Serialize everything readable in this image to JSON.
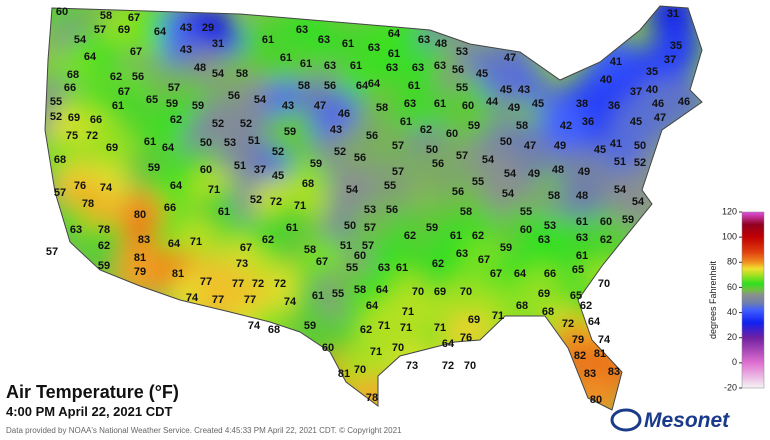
{
  "title": "Air Temperature (°F)",
  "subtitle": "4:00 PM April 22, 2021 CDT",
  "footer": "Data provided by NOAA's National Weather Service. Created 4:45:33 PM April 22, 2021 CDT. © Copyright 2021",
  "logo": "Mesonet",
  "stations": [
    60,
    58,
    67,
    54,
    57,
    69,
    64,
    64,
    43,
    29,
    43,
    31,
    67,
    48,
    68,
    62,
    56,
    54,
    58,
    66,
    67,
    65,
    59,
    57,
    55,
    61,
    59,
    56,
    54,
    52,
    69,
    66,
    62,
    52,
    52,
    75,
    72,
    61,
    64,
    50,
    53,
    51,
    69,
    68,
    52,
    59,
    37,
    60,
    51,
    45,
    59,
    57,
    76,
    74,
    64,
    71,
    68,
    78,
    66,
    61,
    52,
    72,
    71,
    80,
    63,
    78,
    83,
    64,
    71,
    67,
    62,
    57,
    62,
    81,
    59,
    79,
    81,
    73,
    77,
    77,
    72,
    72,
    74,
    77,
    77,
    74,
    74,
    68,
    59,
    63,
    61,
    63,
    61,
    63,
    61,
    61,
    61,
    63,
    61,
    64,
    63,
    63,
    58,
    56,
    64,
    61,
    64,
    63,
    48,
    53,
    63,
    56,
    45,
    47,
    45,
    43,
    63,
    61,
    55,
    44,
    49,
    45,
    43,
    47,
    46,
    58,
    60,
    43,
    61,
    62,
    60,
    59,
    56,
    59,
    52,
    56,
    57,
    50,
    57,
    56,
    54,
    58,
    50,
    47,
    57,
    55,
    54,
    49,
    48,
    49,
    54,
    55,
    56,
    54,
    58,
    50,
    53,
    56,
    57,
    61,
    58,
    51,
    57,
    62,
    59,
    58,
    55,
    53,
    61,
    62,
    60,
    60,
    61,
    63,
    55,
    59,
    67,
    61,
    55,
    58,
    64,
    64,
    70,
    69,
    70,
    62,
    63,
    67,
    67,
    64,
    66,
    65,
    61,
    71,
    71,
    71,
    69,
    71,
    68,
    68,
    69,
    65,
    70,
    62,
    72,
    64,
    62,
    71,
    60,
    71,
    70,
    64,
    76,
    81,
    70,
    73,
    72,
    70,
    78,
    79,
    74,
    82,
    81,
    83,
    83,
    80,
    63,
    63,
    62,
    60,
    59,
    61,
    54,
    54,
    52,
    51,
    50,
    47,
    41,
    45,
    49,
    48,
    31,
    35,
    41,
    40,
    35,
    37,
    40,
    37,
    46,
    46,
    38,
    36,
    36,
    42,
    45
  ],
  "colorbar": {
    "label": "degrees Fahrenheit",
    "ylim": [
      -20,
      120
    ],
    "yticks": [
      120,
      100,
      80,
      60,
      40,
      20,
      0,
      -20
    ]
  }
}
